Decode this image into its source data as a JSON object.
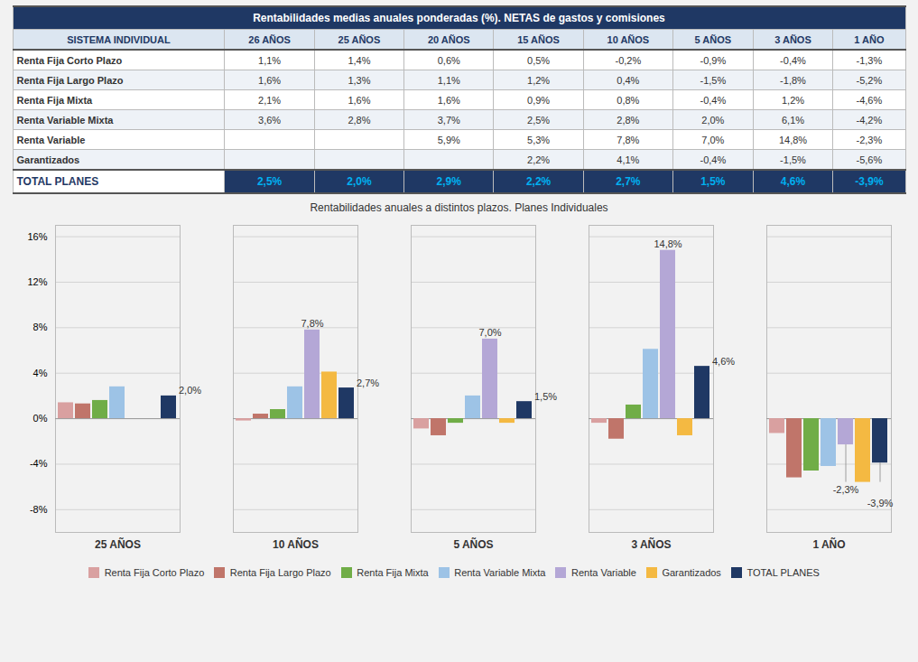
{
  "chart_data": [
    {
      "type": "table",
      "title": "Rentabilidades medias anuales ponderadas (%). NETAS de gastos y comisiones",
      "ylabel": "SISTEMA INDIVIDUAL",
      "categories": [
        "Renta Fija Corto Plazo",
        "Renta Fija Largo Plazo",
        "Renta Fija Mixta",
        "Renta Variable Mixta",
        "Renta Variable",
        "Garantizados",
        "TOTAL PLANES"
      ],
      "data_labels": true,
      "series": [
        {
          "name": "26 AÑOS",
          "values": [
            1.1,
            1.6,
            2.1,
            3.6,
            null,
            null,
            2.5
          ],
          "value_labels": [
            "1,1%",
            "1,6%",
            "2,1%",
            "3,6%",
            null,
            null,
            "2,5%"
          ]
        },
        {
          "name": "25 AÑOS",
          "values": [
            1.4,
            1.3,
            1.6,
            2.8,
            null,
            null,
            2.0
          ],
          "value_labels": [
            "1,4%",
            "1,3%",
            "1,6%",
            "2,8%",
            null,
            null,
            "2,0%"
          ]
        },
        {
          "name": "20 AÑOS",
          "values": [
            0.6,
            1.1,
            1.6,
            3.7,
            5.9,
            null,
            2.9
          ],
          "value_labels": [
            "0,6%",
            "1,1%",
            "1,6%",
            "3,7%",
            "5,9%",
            null,
            "2,9%"
          ]
        },
        {
          "name": "15 AÑOS",
          "values": [
            0.5,
            1.2,
            0.9,
            2.5,
            5.3,
            2.2,
            2.2
          ],
          "value_labels": [
            "0,5%",
            "1,2%",
            "0,9%",
            "2,5%",
            "5,3%",
            "2,2%",
            "2,2%"
          ]
        },
        {
          "name": "10 AÑOS",
          "values": [
            -0.2,
            0.4,
            0.8,
            2.8,
            7.8,
            4.1,
            2.7
          ],
          "value_labels": [
            "-0,2%",
            "0,4%",
            "0,8%",
            "2,8%",
            "7,8%",
            "4,1%",
            "2,7%"
          ]
        },
        {
          "name": "5 AÑOS",
          "values": [
            -0.9,
            -1.5,
            -0.4,
            2.0,
            7.0,
            -0.4,
            1.5
          ],
          "value_labels": [
            "-0,9%",
            "-1,5%",
            "-0,4%",
            "2,0%",
            "7,0%",
            "-0,4%",
            "1,5%"
          ]
        },
        {
          "name": "3 AÑOS",
          "values": [
            -0.4,
            -1.8,
            1.2,
            6.1,
            14.8,
            -1.5,
            4.6
          ],
          "value_labels": [
            "-0,4%",
            "-1,8%",
            "1,2%",
            "6,1%",
            "14,8%",
            "-1,5%",
            "4,6%"
          ]
        },
        {
          "name": "1 AÑO",
          "values": [
            -1.3,
            -5.2,
            -4.6,
            -4.2,
            -2.3,
            -5.6,
            -3.9
          ],
          "value_labels": [
            "-1,3%",
            "-5,2%",
            "-4,6%",
            "-4,2%",
            "-2,3%",
            "-5,6%",
            "-3,9%"
          ]
        }
      ]
    },
    {
      "type": "bar",
      "title": "Rentabilidades anuales a distintos plazos. Planes Individuales",
      "categories": [
        "25 AÑOS",
        "10 AÑOS",
        "5 AÑOS",
        "3 AÑOS",
        "1 AÑO"
      ],
      "series": [
        {
          "name": "Renta Fija Corto Plazo",
          "color": "#d9a0a0",
          "values": [
            1.4,
            -0.2,
            -0.9,
            -0.4,
            -1.3
          ]
        },
        {
          "name": "Renta Fija Largo Plazo",
          "color": "#c0756a",
          "values": [
            1.3,
            0.4,
            -1.5,
            -1.8,
            -5.2
          ]
        },
        {
          "name": "Renta Fija Mixta",
          "color": "#70ad47",
          "values": [
            1.6,
            0.8,
            -0.4,
            1.2,
            -4.6
          ]
        },
        {
          "name": "Renta Variable Mixta",
          "color": "#9dc3e6",
          "values": [
            2.8,
            2.8,
            2.0,
            6.1,
            -4.2
          ]
        },
        {
          "name": "Renta Variable",
          "color": "#b4a7d6",
          "values": [
            null,
            7.8,
            7.0,
            14.8,
            -2.3
          ],
          "value_labels": [
            null,
            "7,8%",
            "7,0%",
            "14,8%",
            "-2,3%"
          ]
        },
        {
          "name": "Garantizados",
          "color": "#f4b942",
          "values": [
            null,
            4.1,
            -0.4,
            -1.5,
            -5.6
          ]
        },
        {
          "name": "TOTAL PLANES",
          "color": "#1f3864",
          "values": [
            2.0,
            2.7,
            1.5,
            4.6,
            -3.9
          ],
          "value_labels": [
            "2,0%",
            "2,7%",
            "1,5%",
            "4,6%",
            "-3,9%"
          ]
        }
      ],
      "ylim": [
        -10,
        17
      ],
      "yticks": [
        {
          "value": -8,
          "label": "-8%"
        },
        {
          "value": -4,
          "label": "-4%"
        },
        {
          "value": 0,
          "label": "0%"
        },
        {
          "value": 4,
          "label": "4%"
        },
        {
          "value": 8,
          "label": "8%"
        },
        {
          "value": 12,
          "label": "12%"
        },
        {
          "value": 16,
          "label": "16%"
        }
      ],
      "grid": true,
      "legend": "bottom",
      "data_labels": true
    }
  ]
}
